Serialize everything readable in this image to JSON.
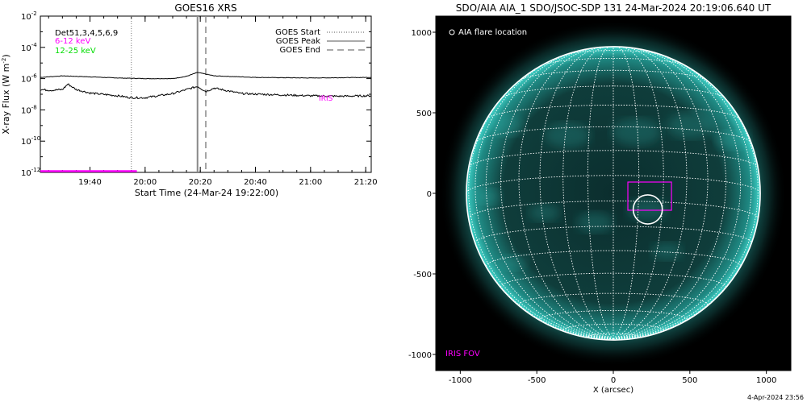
{
  "footer_date": "4-Apr-2024 23:56",
  "chart_data": [
    {
      "type": "line",
      "title": "GOES16 XRS",
      "xlabel": "Start Time (24-Mar-24 19:22:00)",
      "ylabel_main": "X-ray Flux (W m",
      "ylabel_sup": "-2",
      "ylabel_close": ")",
      "y_scale": "log",
      "ylim": [
        1e-12,
        0.01
      ],
      "y_ticks": [
        {
          "value": -2,
          "base": "10",
          "exp": "-2"
        },
        {
          "value": -4,
          "base": "10",
          "exp": "-4"
        },
        {
          "value": -6,
          "base": "10",
          "exp": "-6"
        },
        {
          "value": -8,
          "base": "10",
          "exp": "-8"
        },
        {
          "value": -10,
          "base": "10",
          "exp": "-10"
        },
        {
          "value": -12,
          "base": "10",
          "exp": "-12"
        }
      ],
      "xlim": [
        "19:22",
        "21:22"
      ],
      "x_ticks": [
        "19:40",
        "20:00",
        "20:20",
        "20:40",
        "21:00",
        "21:20"
      ],
      "x_minor_step_min": 5,
      "legend_left": [
        {
          "text": "Det51,3,4,5,6,9",
          "color": "#000000"
        },
        {
          "text": "6-12 keV",
          "color": "#ff00ff"
        },
        {
          "text": "12-25 keV",
          "color": "#00dd00"
        }
      ],
      "legend_right": [
        {
          "text": "GOES Start",
          "style": "dotted"
        },
        {
          "text": "GOES Peak",
          "style": "solid"
        },
        {
          "text": "GOES End",
          "style": "dashed"
        }
      ],
      "markers": {
        "goes_start": "19:55",
        "goes_peak": "20:19",
        "goes_end": "20:22"
      },
      "iris_label": "IRIS",
      "iris_label_time": "21:03",
      "iris_label_flux": 1e-07,
      "series": [
        {
          "color": "#000000",
          "x": [
            "19:22",
            "19:30",
            "19:40",
            "19:50",
            "20:00",
            "20:10",
            "20:15",
            "20:19",
            "20:25",
            "20:40",
            "21:00",
            "21:22"
          ],
          "y": [
            1.2e-06,
            1.5e-06,
            1.3e-06,
            1.1e-06,
            1e-06,
            1e-06,
            1.4e-06,
            2.5e-06,
            1.5e-06,
            1.2e-06,
            1.1e-06,
            1.2e-06
          ]
        },
        {
          "color": "#000000",
          "x": [
            "19:22",
            "19:26",
            "19:30",
            "19:32",
            "19:35",
            "19:40",
            "19:50",
            "19:55",
            "20:00",
            "20:10",
            "20:15",
            "20:19",
            "20:22",
            "20:25",
            "20:35",
            "20:50",
            "21:00",
            "21:10",
            "21:22"
          ],
          "y": [
            2e-07,
            1.8e-07,
            2e-07,
            4.5e-07,
            2e-07,
            1.2e-07,
            8e-08,
            6e-08,
            6e-08,
            1.1e-07,
            2e-07,
            3.2e-07,
            1.5e-07,
            2.5e-07,
            1.1e-07,
            9e-08,
            8e-08,
            7.5e-08,
            8e-08
          ]
        },
        {
          "color": "#ff00ff",
          "x": [
            "19:22",
            "19:57"
          ],
          "y": [
            1.2e-12,
            1.2e-12
          ]
        }
      ]
    },
    {
      "type": "image",
      "title": "SDO/AIA AIA_1 SDO/JSOC-SDP 131 24-Mar-2024 20:19:06.640 UT",
      "xlabel": "X (arcsec)",
      "xlim": [
        -1160,
        1160
      ],
      "ylim": [
        -1100,
        1100
      ],
      "x_ticks": [
        -1000,
        -500,
        0,
        500,
        1000
      ],
      "y_ticks": [
        1000,
        500,
        0,
        -500,
        -1000
      ],
      "solar_radius_arcsec": 960,
      "b0_deg": -7,
      "grid_step_deg": 10,
      "flare_location_label": "AIA flare location",
      "flare_location": {
        "x": 225,
        "y": -100,
        "r": 95
      },
      "iris_fov_label": "IRIS FOV",
      "iris_fov": {
        "x0": 95,
        "x1": 380,
        "y0": -105,
        "y1": 70
      },
      "colors": {
        "disk": "#0a2a2a",
        "grid": "#ffffff",
        "iris": "#ff00ff",
        "emission": "#2ec8c0"
      }
    }
  ]
}
